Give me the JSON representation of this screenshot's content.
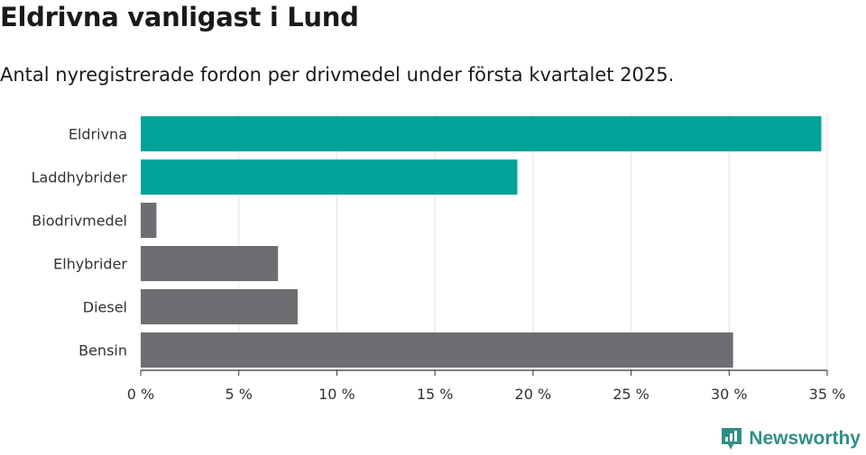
{
  "title": "Eldrivna vanligast i Lund",
  "subtitle": "Antal nyregistrerade fordon per drivmedel under första kvartalet 2025.",
  "brand": {
    "name": "Newsworthy",
    "icon": "newsworthy-logo-icon",
    "color": "#2f8f87"
  },
  "chart_data": {
    "type": "bar",
    "orientation": "horizontal",
    "categories": [
      "Eldrivna",
      "Laddhybrider",
      "Biodrivmedel",
      "Elhybrider",
      "Diesel",
      "Bensin"
    ],
    "values": [
      34.7,
      19.2,
      0.8,
      7.0,
      8.0,
      30.2
    ],
    "colors": [
      "#00a398",
      "#00a398",
      "#6e6d72",
      "#6e6d72",
      "#6e6d72",
      "#6e6d72"
    ],
    "xticks": [
      "0 %",
      "5 %",
      "10 %",
      "15 %",
      "20 %",
      "25 %",
      "30 %",
      "35 %"
    ],
    "xlim": [
      0,
      35
    ],
    "grid": true
  }
}
